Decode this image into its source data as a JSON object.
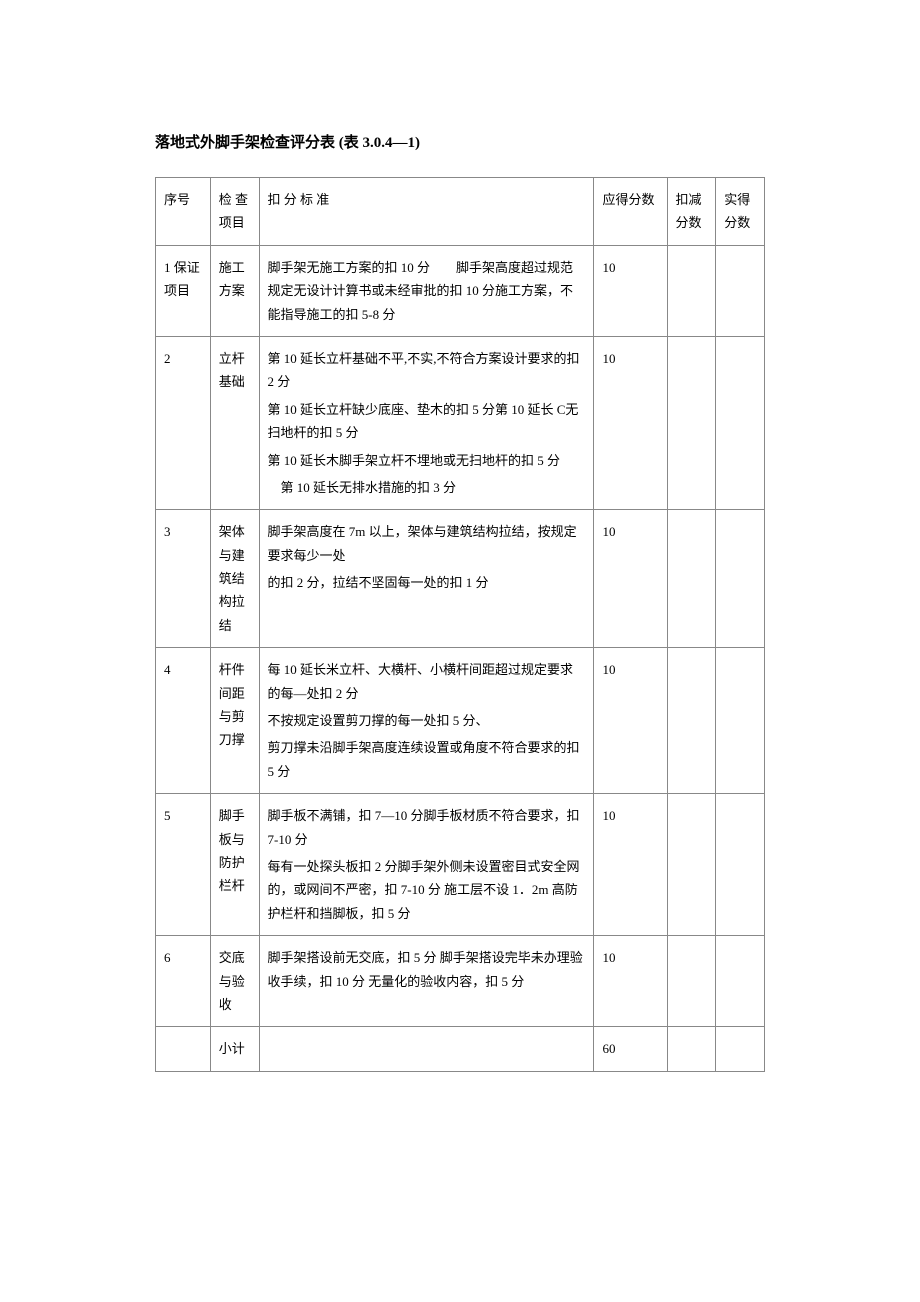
{
  "title": "落地式外脚手架检查评分表 (表 3.0.4—1)",
  "headers": {
    "seq": "序号",
    "item": "检 查项目",
    "criteria": "扣 分 标 准",
    "full_score": "应得分数",
    "deduct": "扣减分数",
    "actual": "实得分数"
  },
  "rows": [
    {
      "seq": "1 保证项目",
      "item": "施工方案",
      "criteria_lines": [
        "脚手架无施工方案的扣 10 分　　脚手架高度超过规范规定无设计计算书或未经审批的扣 10 分施工方案，不能指导施工的扣 5-8 分"
      ],
      "score": "10"
    },
    {
      "seq": "2",
      "item": "立杆基础",
      "criteria_lines": [
        "第 10 延长立杆基础不平,不实,不符合方案设计要求的扣2 分",
        "第 10 延长立杆缺少底座、垫木的扣 5 分第 10 延长 C无扫地杆的扣 5 分",
        "第 10 延长木脚手架立杆不埋地或无扫地杆的扣 5 分",
        "　第 10 延长无排水措施的扣 3 分"
      ],
      "score": "10"
    },
    {
      "seq": "3",
      "item": "架体与建筑结构拉结",
      "criteria_lines": [
        "脚手架高度在 7m 以上，架体与建筑结构拉结，按规定要求每少一处",
        "的扣 2 分，拉结不坚固每一处的扣 1 分"
      ],
      "score": "10"
    },
    {
      "seq": "4",
      "item": "杆件间距与剪刀撑",
      "criteria_lines": [
        "每 10 延长米立杆、大横杆、小横杆间距超过规定要求的每—处扣 2 分",
        "不按规定设置剪刀撑的每一处扣 5 分、",
        "剪刀撑未沿脚手架高度连续设置或角度不符合要求的扣5 分"
      ],
      "score": "10"
    },
    {
      "seq": "5",
      "item": "脚手板与防护栏杆",
      "criteria_lines": [
        "脚手板不满铺，扣 7—10 分脚手板材质不符合要求，扣7-10 分",
        "每有一处探头板扣 2 分脚手架外侧未设置密目式安全网的，或网间不严密，扣 7-10 分 施工层不设 1．2m 高防护栏杆和挡脚板，扣 5 分"
      ],
      "score": "10"
    },
    {
      "seq": "6",
      "item": "交底与验收",
      "criteria_lines": [
        "脚手架搭设前无交底，扣 5 分 脚手架搭设完毕未办理验收手续，扣 10 分 无量化的验收内容，扣 5 分"
      ],
      "score": "10"
    }
  ],
  "subtotal": {
    "label": "小计",
    "value": "60"
  },
  "colors": {
    "text": "#000000",
    "border": "#888888",
    "background": "#ffffff"
  },
  "typography": {
    "title_fontsize": 15,
    "body_fontsize": 13,
    "font_family": "SimSun"
  }
}
